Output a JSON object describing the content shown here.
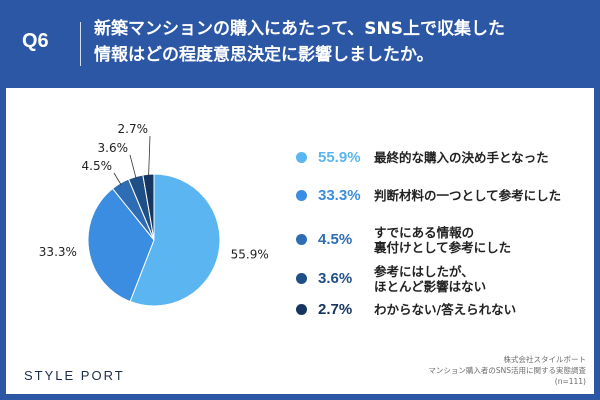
{
  "header": {
    "question_number": "Q6",
    "title_line1": "新築マンションの購入にあたって、SNS上で収集した",
    "title_line2": "情報はどの程度意思決定に影響しましたか。"
  },
  "chart_data": {
    "type": "pie",
    "slices": [
      {
        "label": "最終的な購入の決め手となった",
        "label_lines": [
          "最終的な購入の決め手となった"
        ],
        "value": 55.9,
        "value_label": "55.9%",
        "color": "#5bb5f0"
      },
      {
        "label": "判断材料の一つとして参考にした",
        "label_lines": [
          "判断材料の一つとして参考にした"
        ],
        "value": 33.3,
        "value_label": "33.3%",
        "color": "#3a8de0"
      },
      {
        "label": "すでにある情報の裏付けとして参考にした",
        "label_lines": [
          "すでにある情報の",
          "裏付けとして参考にした"
        ],
        "value": 4.5,
        "value_label": "4.5%",
        "color": "#2e6db4"
      },
      {
        "label": "参考にはしたが、ほとんど影響はない",
        "label_lines": [
          "参考にはしたが、",
          "ほとんど影響はない"
        ],
        "value": 3.6,
        "value_label": "3.6%",
        "color": "#1f4f87"
      },
      {
        "label": "わからない/答えられない",
        "label_lines": [
          "わからない/答えられない"
        ],
        "value": 2.7,
        "value_label": "2.7%",
        "color": "#163660"
      }
    ]
  },
  "footer": {
    "logo": "STYLE PORT",
    "source_line1": "株式会社スタイルポート",
    "source_line2": "マンション購入者のSNS活用に関する実態調査",
    "source_line3": "(n=111)"
  }
}
